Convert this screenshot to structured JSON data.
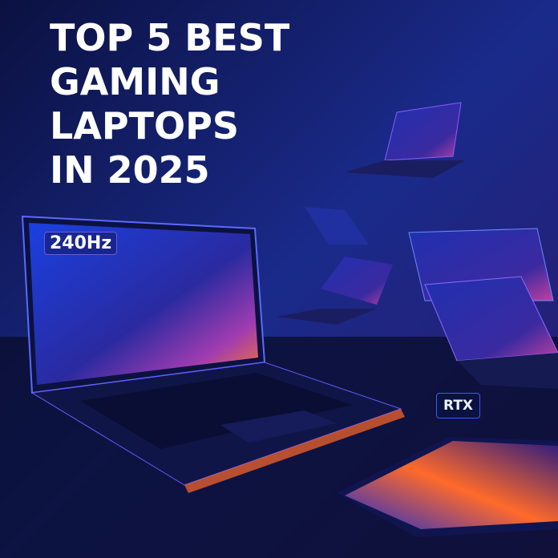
{
  "title": {
    "lines": [
      "TOP 5 BEST",
      "GAMING",
      "LAPTOPS",
      "IN 2025"
    ]
  },
  "badges": {
    "refresh_rate": "240Hz",
    "gpu": "RTX"
  },
  "colors": {
    "background": "#0a0f3a",
    "accent_blue": "#1a3cff",
    "accent_orange": "#ff6a2a",
    "accent_purple": "#8a3cff"
  }
}
